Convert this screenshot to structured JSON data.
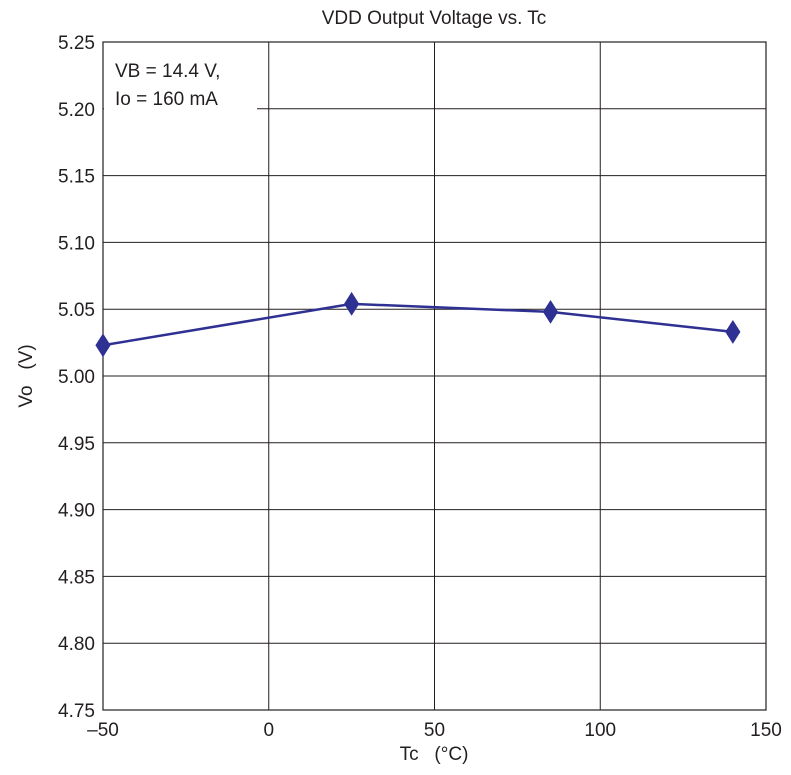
{
  "chart_data": {
    "type": "line",
    "title": "VDD Output Voltage vs. Tc",
    "xlabel": "Tc   (°C)",
    "ylabel": "Vo   (V)",
    "xlim": [
      -50,
      150
    ],
    "ylim": [
      4.75,
      5.25
    ],
    "x_ticks": [
      -50,
      0,
      50,
      100,
      150
    ],
    "x_tick_labels": [
      "–50",
      "0",
      "50",
      "100",
      "150"
    ],
    "y_ticks": [
      4.75,
      4.8,
      4.85,
      4.9,
      4.95,
      5.0,
      5.05,
      5.1,
      5.15,
      5.2,
      5.25
    ],
    "y_tick_labels": [
      "4.75",
      "4.80",
      "4.85",
      "4.90",
      "4.95",
      "5.00",
      "5.05",
      "5.10",
      "5.15",
      "5.20",
      "5.25"
    ],
    "grid": true,
    "annotation": {
      "lines": [
        "VB = 14.4 V,",
        "Io = 160 mA"
      ],
      "placement": "top-left"
    },
    "series": [
      {
        "x": [
          -50,
          25,
          85,
          140
        ],
        "y": [
          5.023,
          5.054,
          5.048,
          5.033
        ],
        "marker": "diamond",
        "color": "#2e3192"
      }
    ]
  }
}
